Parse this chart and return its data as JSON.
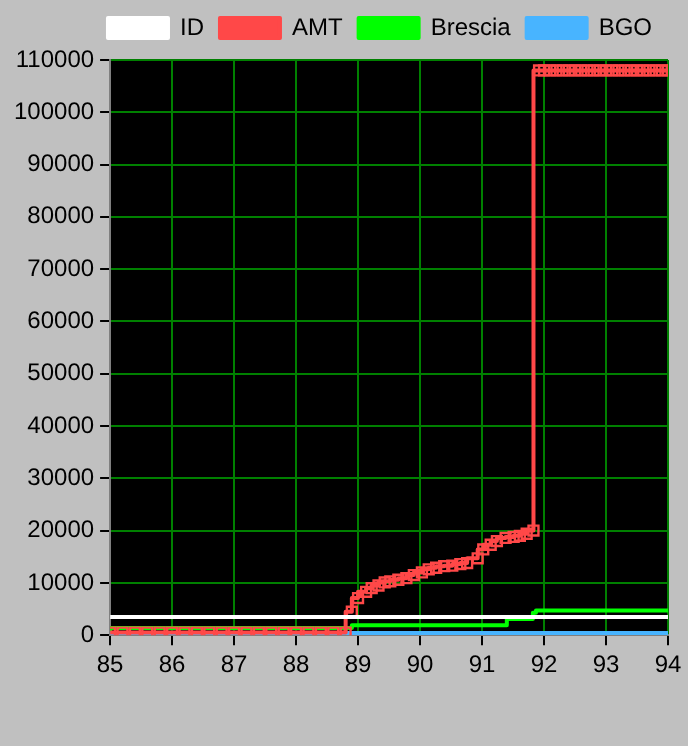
{
  "chart_data": {
    "type": "step",
    "xlim": [
      85,
      94
    ],
    "xticks": [
      85,
      86,
      87,
      88,
      89,
      90,
      91,
      92,
      93,
      94
    ],
    "ylim": [
      0,
      110000
    ],
    "yticks": [
      0,
      10000,
      20000,
      30000,
      40000,
      50000,
      60000,
      70000,
      80000,
      90000,
      100000,
      110000
    ],
    "grid": true,
    "legend": "top",
    "series": [
      {
        "name": "ID",
        "color": "#ffffff",
        "marker": "none",
        "x": [
          85,
          94
        ],
        "values": [
          3500,
          3500
        ]
      },
      {
        "name": "AMT",
        "color": "#ff4848",
        "marker": "square",
        "x": [
          85,
          85.2,
          85.4,
          85.6,
          85.8,
          86,
          86.2,
          86.4,
          86.6,
          86.8,
          87,
          87.2,
          87.4,
          87.6,
          87.8,
          88,
          88.2,
          88.4,
          88.6,
          88.8,
          88.9,
          89,
          89.13,
          89.22,
          89.33,
          89.43,
          89.52,
          89.65,
          89.78,
          89.9,
          90.03,
          90.14,
          90.26,
          90.39,
          90.52,
          90.65,
          90.76,
          90.93,
          91.02,
          91.14,
          91.24,
          91.38,
          91.51,
          91.61,
          91.72,
          91.83,
          91.92,
          92,
          92.1,
          92.2,
          92.3,
          92.4,
          92.5,
          92.6,
          92.7,
          92.8,
          92.9,
          93,
          93.1,
          93.2,
          93.3,
          93.4,
          93.5,
          93.6,
          93.7,
          93.8,
          93.9,
          94
        ],
        "values": [
          500,
          500,
          500,
          500,
          500,
          500,
          500,
          500,
          500,
          500,
          500,
          500,
          500,
          500,
          500,
          500,
          500,
          500,
          500,
          500,
          4500,
          7100,
          8300,
          9000,
          9500,
          10100,
          10300,
          10600,
          10900,
          11500,
          12000,
          12600,
          12900,
          13200,
          13300,
          13600,
          13800,
          14700,
          16400,
          17300,
          18000,
          18600,
          18800,
          19000,
          19400,
          20000,
          108000,
          108000,
          108000,
          108000,
          108000,
          108000,
          108000,
          108000,
          108000,
          108000,
          108000,
          108000,
          108000,
          108000,
          108000,
          108000,
          108000,
          108000,
          108000,
          108000,
          108000,
          108000
        ]
      },
      {
        "name": "Brescia",
        "color": "#00ff00",
        "marker": "none",
        "x": [
          85,
          88.9,
          91.4,
          91.82,
          91.87,
          91.93,
          94
        ],
        "values": [
          700,
          1400,
          1900,
          3100,
          4300,
          4700,
          4700
        ]
      },
      {
        "name": "BGO",
        "color": "#48b4ff",
        "marker": "none",
        "x": [
          85,
          94
        ],
        "values": [
          400,
          400
        ]
      }
    ]
  }
}
